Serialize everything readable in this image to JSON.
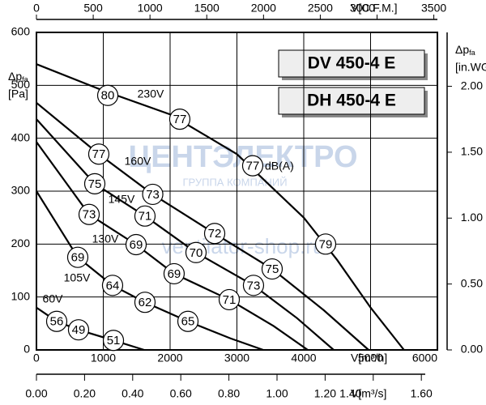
{
  "chart_data": {
    "type": "line",
    "titles": [
      "DV 450-4 E",
      "DH 450-4 E"
    ],
    "y_label": {
      "main": "Δp",
      "sub": "fa",
      "unit": "[Pa]"
    },
    "y2_label": {
      "main": "Δp",
      "sub": "fa",
      "unit": "[in.WG]"
    },
    "x_label": "V[m³/h]",
    "x2_label": "V[C.F.M.]",
    "x3_label": "V[m³/s]",
    "sound_unit": "dB(A)",
    "watermark": [
      "ЦЕНТЭЛЕКТРО",
      "ГРУППА КОМПАНИЙ",
      "ventilator-shop.ru"
    ],
    "xlim": [
      0,
      6000
    ],
    "xticks": [
      0,
      1000,
      2000,
      3000,
      4000,
      5000,
      6000
    ],
    "ylim": [
      0,
      600
    ],
    "yticks": [
      0,
      100,
      200,
      300,
      400,
      500,
      600
    ],
    "x2lim": [
      0,
      3531.5
    ],
    "x2ticks": [
      0,
      500,
      1000,
      1500,
      2000,
      2500,
      3000,
      3500
    ],
    "x3lim": [
      0,
      1.6667
    ],
    "x3ticks": [
      {
        "value": 0,
        "label": "0.00"
      },
      {
        "value": 0.2,
        "label": "0.20"
      },
      {
        "value": 0.4,
        "label": "0.40"
      },
      {
        "value": 0.6,
        "label": "0.60"
      },
      {
        "value": 0.8,
        "label": "0.80"
      },
      {
        "value": 1.0,
        "label": "1.00"
      },
      {
        "value": 1.2,
        "label": "1.20"
      },
      {
        "value": 1.4,
        "label": "1.40"
      },
      {
        "value": 1.6,
        "label": "1.60"
      }
    ],
    "y2lim": [
      0,
      2.409
    ],
    "y2ticks": [
      {
        "value": 0,
        "label": "0.00"
      },
      {
        "value": 0.5,
        "label": "0.50"
      },
      {
        "value": 1.0,
        "label": "1.00"
      },
      {
        "value": 1.5,
        "label": "1.50"
      },
      {
        "value": 2.0,
        "label": "2.00"
      }
    ],
    "grid": true,
    "color": "#000000",
    "series": [
      {
        "name": "230V",
        "x": [
          0,
          1000,
          2000,
          3000,
          4000,
          4500,
          5000,
          5500
        ],
        "values": [
          540,
          490,
          445,
          370,
          250,
          170,
          80,
          0
        ],
        "sound": {
          "x": [
            1067,
            2145,
            3236,
            4327
          ],
          "values": [
            481,
            436,
            348,
            200
          ],
          "db": [
            80,
            77,
            77,
            79
          ]
        }
      },
      {
        "name": "160V",
        "x": [
          0,
          933,
          1740,
          2667,
          3527,
          4300,
          4970
        ],
        "values": [
          467,
          370,
          294,
          220,
          153,
          75,
          0
        ],
        "sound": {
          "x": [
            933,
            1740,
            2667,
            3527
          ],
          "values": [
            370,
            294,
            220,
            153
          ],
          "db": [
            77,
            73,
            72,
            75
          ]
        }
      },
      {
        "name": "145V",
        "x": [
          0,
          873,
          1624,
          2388,
          3248,
          3900,
          4448
        ],
        "values": [
          436,
          314,
          253,
          184,
          122,
          60,
          0
        ],
        "sound": {
          "x": [
            873,
            1624,
            2388,
            3248
          ],
          "values": [
            314,
            253,
            184,
            122
          ],
          "db": [
            75,
            71,
            70,
            73
          ]
        }
      },
      {
        "name": "130V",
        "x": [
          0,
          788,
          1491,
          2060,
          2885,
          3550,
          4060
        ],
        "values": [
          393,
          256,
          199,
          144,
          95,
          45,
          0
        ],
        "sound": {
          "x": [
            788,
            1491,
            2060,
            2885
          ],
          "values": [
            256,
            199,
            144,
            95
          ],
          "db": [
            73,
            69,
            69,
            71
          ]
        }
      },
      {
        "name": "105V",
        "x": [
          0,
          618,
          1139,
          1624,
          2267,
          2900,
          3394
        ],
        "values": [
          300,
          175,
          122,
          90,
          54,
          22,
          0
        ],
        "sound": {
          "x": [
            618,
            1139,
            1624,
            2267
          ],
          "values": [
            175,
            122,
            90,
            54
          ],
          "db": [
            69,
            64,
            62,
            65
          ]
        }
      },
      {
        "name": "60V",
        "x": [
          0,
          303,
          630,
          1152,
          1612
        ],
        "values": [
          80,
          54,
          38,
          18,
          0
        ],
        "sound": {
          "x": [
            303,
            630,
            1152
          ],
          "values": [
            54,
            38,
            18
          ],
          "db": [
            56,
            49,
            51
          ]
        }
      }
    ]
  }
}
